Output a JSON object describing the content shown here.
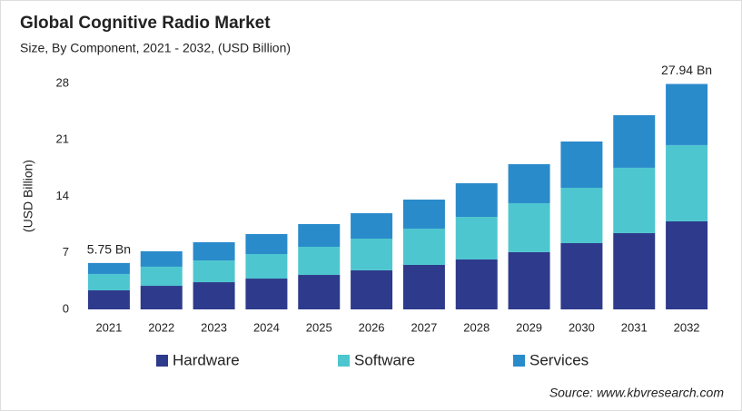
{
  "chart_data": {
    "type": "stacked_bar",
    "title": "Global Cognitive Radio Market",
    "subtitle": "Size, By Component, 2021 - 2032, (USD Billion)",
    "y_label": "(USD Billion)",
    "source": "Source: www.kbvresearch.com",
    "categories": [
      "2021",
      "2022",
      "2023",
      "2024",
      "2025",
      "2026",
      "2027",
      "2028",
      "2029",
      "2030",
      "2031",
      "2032"
    ],
    "series": [
      {
        "name": "Hardware",
        "color": "#2e3a8c",
        "values": [
          2.36,
          2.92,
          3.37,
          3.82,
          4.27,
          4.84,
          5.51,
          6.19,
          7.09,
          8.21,
          9.45,
          10.91
        ]
      },
      {
        "name": "Software",
        "color": "#4ec6cf",
        "values": [
          2.03,
          2.37,
          2.7,
          3.04,
          3.49,
          3.93,
          4.5,
          5.28,
          6.07,
          6.86,
          8.1,
          9.45
        ]
      },
      {
        "name": "Services",
        "color": "#2a8bcb",
        "values": [
          1.36,
          1.91,
          2.25,
          2.48,
          2.81,
          3.15,
          3.6,
          4.17,
          4.84,
          5.74,
          6.52,
          7.58
        ]
      }
    ],
    "annotations": [
      {
        "text": "5.75 Bn",
        "x": "2021",
        "y": 5.75
      },
      {
        "text": "27.94 Bn",
        "x": "2032",
        "y": 27.94
      }
    ],
    "ylim": [
      0,
      28
    ],
    "yticks": [
      0,
      7,
      14,
      21,
      28
    ],
    "grid": false
  }
}
